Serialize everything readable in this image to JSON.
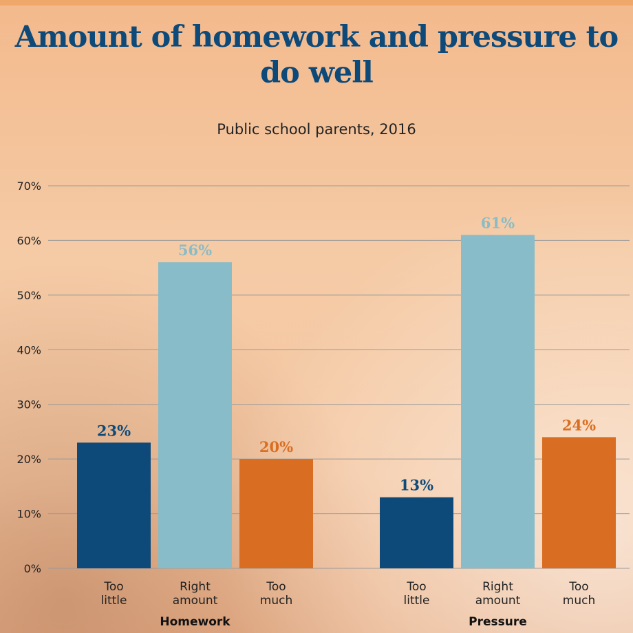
{
  "chart_data": {
    "type": "bar",
    "title": "Amount of homework and pressure to do well",
    "subtitle": "Public school parents, 2016",
    "groups": [
      "Homework",
      "Pressure"
    ],
    "categories": [
      [
        "Too",
        "little"
      ],
      [
        "Right",
        "amount"
      ],
      [
        "Too",
        "much"
      ]
    ],
    "series": [
      {
        "group": "Homework",
        "values": [
          23,
          56,
          20
        ],
        "labels": [
          "23%",
          "56%",
          "20%"
        ]
      },
      {
        "group": "Pressure",
        "values": [
          13,
          61,
          24
        ],
        "labels": [
          "13%",
          "61%",
          "24%"
        ]
      }
    ],
    "ylim": [
      0,
      70
    ],
    "yticks": [
      0,
      10,
      20,
      30,
      40,
      50,
      60,
      70
    ],
    "ytick_labels": [
      "0%",
      "10%",
      "20%",
      "30%",
      "40%",
      "50%",
      "60%",
      "70%"
    ],
    "grid": true,
    "colors": {
      "too_little": "#0d4a7a",
      "right_amount": "#87bcc8",
      "too_much": "#d96e22",
      "title": "#0d4a7a",
      "gridline": "#9a9a9a"
    }
  }
}
